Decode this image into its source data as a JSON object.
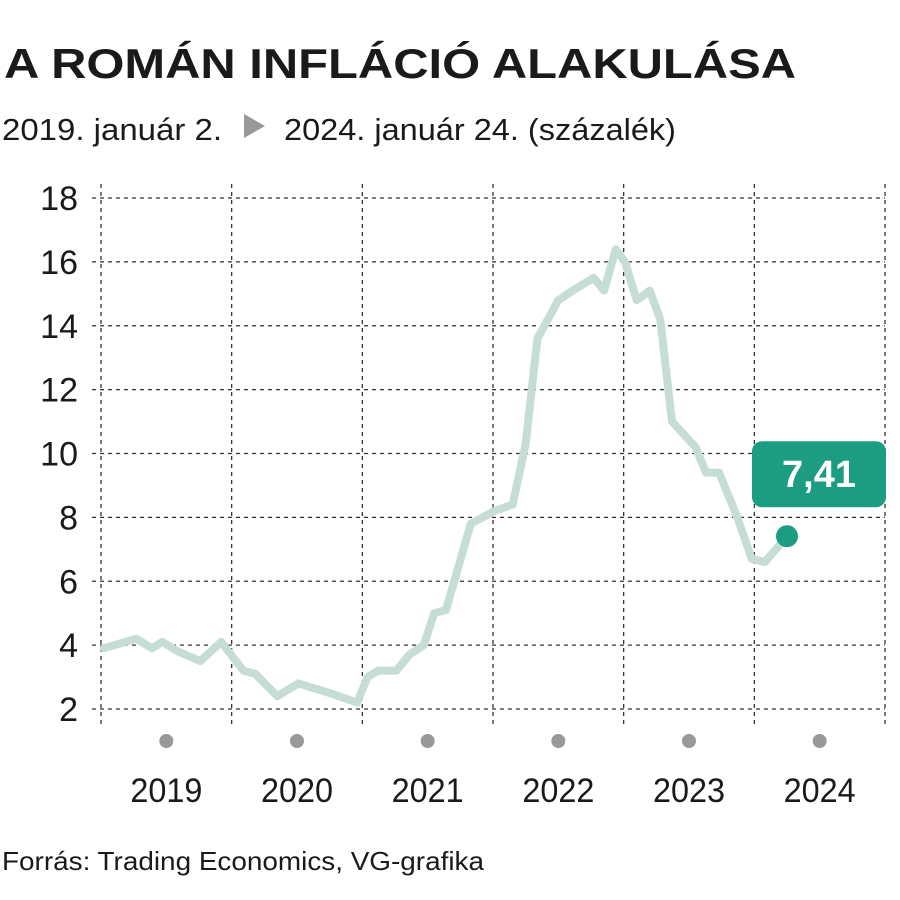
{
  "chart_data": {
    "type": "line",
    "title": "A ROMÁN INFLÁCIÓ ALAKULÁSA",
    "subtitle_start": "2019. január 2.",
    "subtitle_end": "2024. január 24. (százalék)",
    "source": "Forrás: Trading Economics, VG-grafika",
    "x": [
      2019.02,
      2019.27,
      2019.39,
      2019.47,
      2019.59,
      2019.76,
      2019.92,
      2020.09,
      2020.18,
      2020.35,
      2020.51,
      2020.75,
      2020.96,
      2021.04,
      2021.12,
      2021.26,
      2021.36,
      2021.47,
      2021.55,
      2021.64,
      2021.83,
      2022.01,
      2022.15,
      2022.25,
      2022.34,
      2022.5,
      2022.61,
      2022.77,
      2022.85,
      2022.94,
      2023.01,
      2023.1,
      2023.2,
      2023.28,
      2023.37,
      2023.55,
      2023.63,
      2023.73,
      2023.87,
      2023.98,
      2024.08,
      2024.25
    ],
    "values": [
      3.9,
      4.2,
      3.9,
      4.1,
      3.8,
      3.5,
      4.1,
      3.2,
      3.1,
      2.4,
      2.8,
      2.5,
      2.2,
      3.0,
      3.2,
      3.2,
      3.7,
      4.0,
      5.0,
      5.1,
      7.8,
      8.2,
      8.4,
      10.3,
      13.6,
      14.8,
      15.1,
      15.5,
      15.1,
      16.4,
      16.0,
      14.8,
      15.1,
      14.2,
      11.0,
      10.2,
      9.4,
      9.4,
      8.0,
      6.7,
      6.6,
      7.41
    ],
    "value_labels": [
      null,
      null,
      null,
      null,
      null,
      null,
      null,
      null,
      null,
      null,
      null,
      null,
      null,
      null,
      null,
      null,
      null,
      null,
      null,
      null,
      null,
      null,
      null,
      null,
      null,
      null,
      null,
      null,
      null,
      null,
      null,
      null,
      null,
      null,
      null,
      null,
      null,
      null,
      null,
      null,
      null,
      "7,41"
    ],
    "color": "#c6ddd3",
    "marker_color": "#1c9c80",
    "xlim": [
      2019,
      2025
    ],
    "xticks": [
      2019,
      2020,
      2021,
      2022,
      2023,
      2024,
      2025
    ],
    "x_labels": [
      "2019",
      "2020",
      "2021",
      "2022",
      "2023",
      "2024"
    ],
    "ylim": [
      2,
      18
    ],
    "yticks": [
      2,
      4,
      6,
      8,
      10,
      12,
      14,
      16,
      18
    ],
    "grid": true
  }
}
